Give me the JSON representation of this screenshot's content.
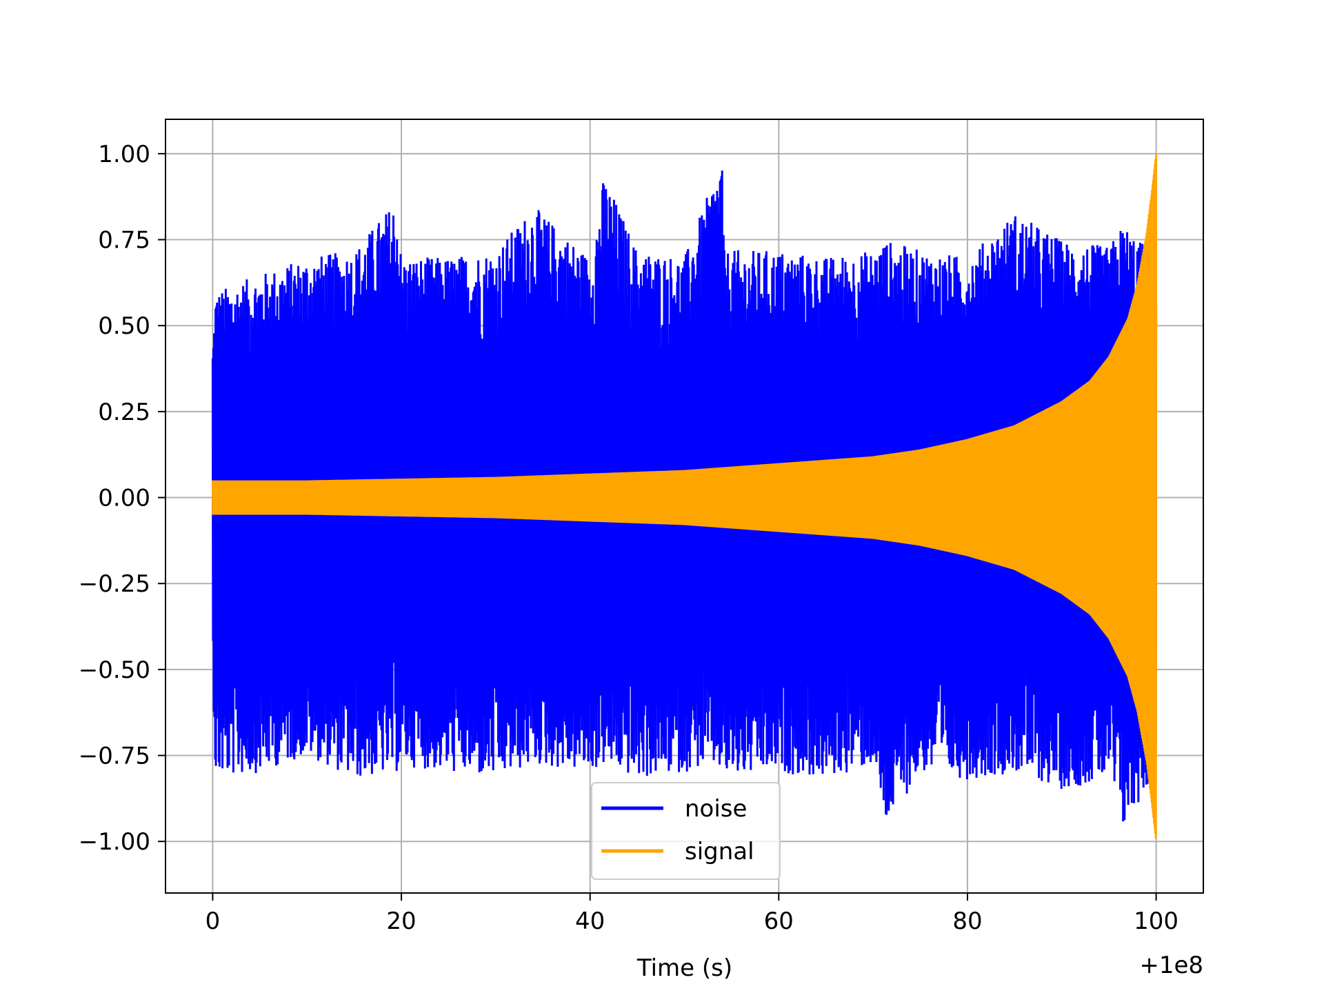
{
  "chart_data": {
    "type": "line",
    "xlabel": "Time (s)",
    "ylabel": "",
    "x_offset_label": "+1e8",
    "xlim": [
      -5,
      105
    ],
    "ylim": [
      -1.15,
      1.1
    ],
    "x_ticks": [
      0,
      20,
      40,
      60,
      80,
      100
    ],
    "x_tick_labels": [
      "0",
      "20",
      "40",
      "60",
      "80",
      "100"
    ],
    "y_ticks": [
      1.0,
      0.75,
      0.5,
      0.25,
      0.0,
      -0.25,
      -0.5,
      -0.75,
      -1.0
    ],
    "y_tick_labels": [
      "1.00",
      "0.75",
      "0.50",
      "0.25",
      "0.00",
      "−0.25",
      "−0.50",
      "−0.75",
      "−1.00"
    ],
    "grid": true,
    "legend_position": "lower center",
    "series": [
      {
        "name": "noise",
        "color": "#0000ff",
        "x": [
          0,
          0.3,
          5,
          10,
          15,
          19.5,
          20,
          25,
          30,
          34,
          40,
          41.5,
          45,
          50,
          52.5,
          54,
          54.2,
          60,
          65,
          70,
          71.3,
          75,
          80,
          85,
          90,
          95,
          96.5,
          100
        ],
        "upper_envelope": [
          0.45,
          0.6,
          0.65,
          0.7,
          0.72,
          0.87,
          0.7,
          0.7,
          0.72,
          0.85,
          0.7,
          0.94,
          0.72,
          0.7,
          0.88,
          1.0,
          0.72,
          0.72,
          0.7,
          0.72,
          0.75,
          0.72,
          0.7,
          0.83,
          0.75,
          0.73,
          0.8,
          0.7
        ],
        "lower_envelope": [
          -0.5,
          -0.82,
          -0.8,
          -0.75,
          -0.82,
          -0.8,
          -0.78,
          -0.8,
          -0.82,
          -0.78,
          -0.8,
          -0.78,
          -0.82,
          -0.8,
          -0.78,
          -0.8,
          -0.82,
          -0.8,
          -0.82,
          -0.78,
          -0.96,
          -0.8,
          -0.82,
          -0.8,
          -0.85,
          -0.82,
          -0.97,
          -0.8
        ]
      },
      {
        "name": "signal",
        "color": "#ffa500",
        "x": [
          0,
          10,
          20,
          30,
          40,
          50,
          60,
          70,
          75,
          80,
          85,
          90,
          93,
          95,
          97,
          98,
          99,
          99.5,
          100
        ],
        "amplitude": [
          0.05,
          0.05,
          0.055,
          0.06,
          0.07,
          0.08,
          0.1,
          0.12,
          0.14,
          0.17,
          0.21,
          0.28,
          0.34,
          0.41,
          0.52,
          0.62,
          0.77,
          0.88,
          1.0
        ]
      }
    ]
  }
}
